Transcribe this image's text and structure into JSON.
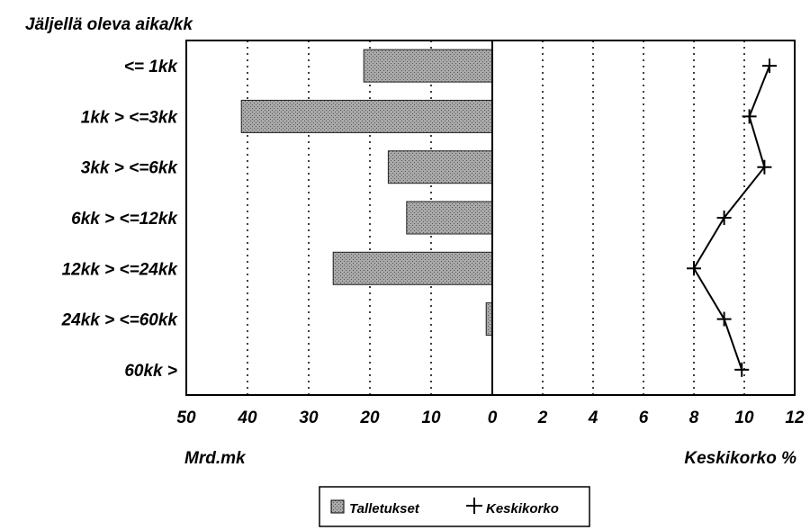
{
  "chart_data": {
    "type": "bar",
    "title": "Jäljellä oleva aika/kk",
    "categories": [
      "<= 1kk",
      "1kk > <=3kk",
      "3kk > <=6kk",
      "6kk > <=12kk",
      "12kk > <=24kk",
      "24kk > <=60kk",
      "60kk >"
    ],
    "series": [
      {
        "name": "Talletukset",
        "kind": "bar",
        "axis": "left",
        "values": [
          21,
          41,
          17,
          14,
          26,
          1,
          0
        ]
      },
      {
        "name": "Keskikorko",
        "kind": "line",
        "axis": "right",
        "values": [
          11.0,
          10.2,
          10.8,
          9.2,
          8.0,
          9.2,
          9.9
        ]
      }
    ],
    "left_axis": {
      "label": "Mrd.mk",
      "range": [
        50,
        0
      ],
      "ticks": [
        "50",
        "40",
        "30",
        "20",
        "10",
        "0"
      ]
    },
    "right_axis": {
      "label": "Keskikorko %",
      "range": [
        0,
        12
      ],
      "ticks": [
        "0",
        "2",
        "4",
        "6",
        "8",
        "10",
        "12"
      ]
    },
    "grid": "vertical-dotted",
    "legend": "bottom-center",
    "colors": {
      "bar_fill": "#a9a9a9",
      "line": "#000000"
    }
  }
}
